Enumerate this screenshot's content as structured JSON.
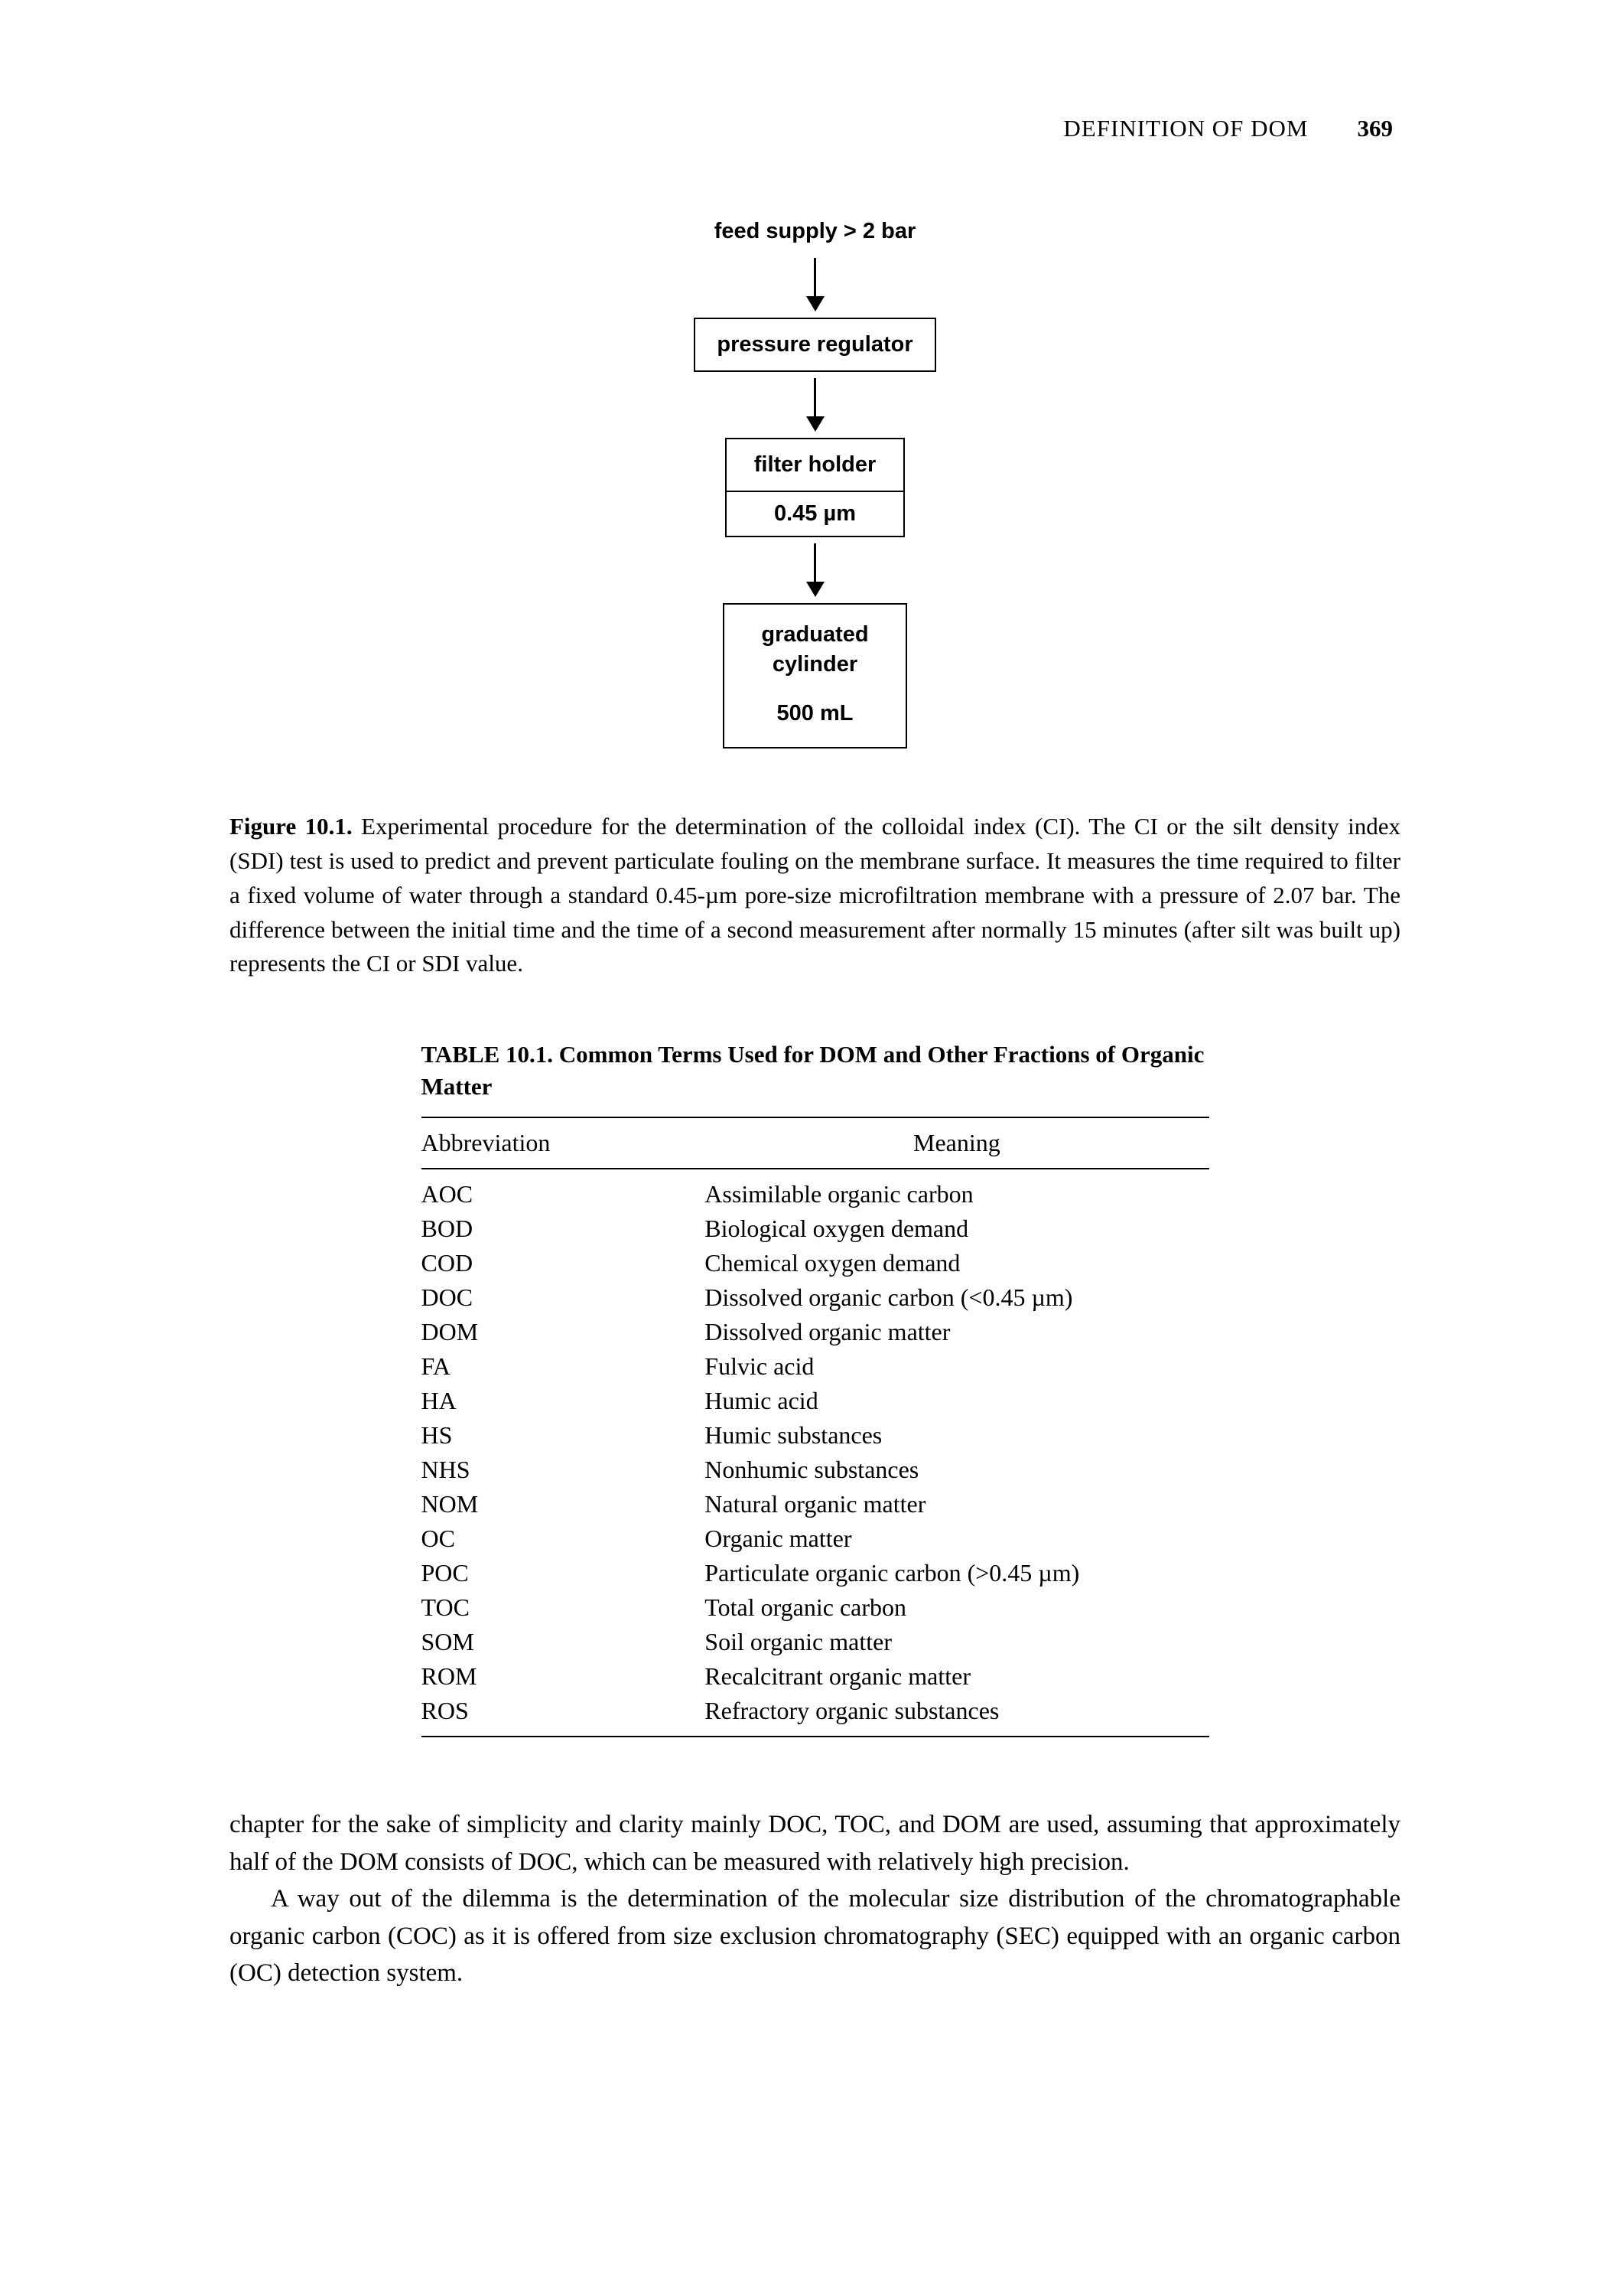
{
  "header": {
    "running_head": "DEFINITION OF DOM",
    "page_number": "369"
  },
  "flowchart": {
    "nodes": [
      {
        "id": "feed",
        "type": "label",
        "text": "feed supply > 2 bar"
      },
      {
        "id": "reg",
        "type": "box",
        "text": "pressure regulator"
      },
      {
        "id": "filter",
        "type": "box-with-sub",
        "text": "filter holder",
        "subtext": "0.45 µm"
      },
      {
        "id": "cyl",
        "type": "tall-box",
        "line1": "graduated",
        "line2": "cylinder",
        "line3": "500 mL"
      }
    ],
    "arrow_color": "#000000",
    "font_family": "Arial, Helvetica, sans-serif"
  },
  "figure_caption": {
    "label": "Figure 10.1.",
    "text": "Experimental procedure for the determination of the colloidal index (CI). The CI or the silt density index (SDI) test is used to predict and prevent particulate fouling on the membrane surface. It measures the time required to filter a fixed volume of water through a standard 0.45-µm pore-size microfiltration membrane with a pressure of 2.07 bar. The difference between the initial time and the time of a second measurement after normally 15 minutes (after silt was built up) represents the CI or SDI value."
  },
  "table": {
    "title": "TABLE 10.1. Common Terms Used for DOM and Other Fractions of Organic Matter",
    "columns": [
      "Abbreviation",
      "Meaning"
    ],
    "rows": [
      [
        "AOC",
        "Assimilable organic carbon"
      ],
      [
        "BOD",
        "Biological oxygen demand"
      ],
      [
        "COD",
        "Chemical oxygen demand"
      ],
      [
        "DOC",
        "Dissolved organic carbon (<0.45 µm)"
      ],
      [
        "DOM",
        "Dissolved organic matter"
      ],
      [
        "FA",
        "Fulvic acid"
      ],
      [
        "HA",
        "Humic acid"
      ],
      [
        "HS",
        "Humic substances"
      ],
      [
        "NHS",
        "Nonhumic substances"
      ],
      [
        "NOM",
        "Natural organic matter"
      ],
      [
        "OC",
        "Organic matter"
      ],
      [
        "POC",
        "Particulate organic carbon (>0.45 µm)"
      ],
      [
        "TOC",
        "Total organic carbon"
      ],
      [
        "SOM",
        "Soil organic matter"
      ],
      [
        "ROM",
        "Recalcitrant organic matter"
      ],
      [
        "ROS",
        "Refractory organic substances"
      ]
    ]
  },
  "body": {
    "para1": "chapter for the sake of simplicity and clarity mainly DOC, TOC, and DOM are used, assuming that approximately half of the DOM consists of DOC, which can be measured with relatively high precision.",
    "para2": "A way out of the dilemma is the determination of the molecular size distribution of the chromatographable organic carbon (COC) as it is offered from size exclusion chromatography (SEC) equipped with an organic carbon (OC) detection system."
  },
  "colors": {
    "text": "#000000",
    "background": "#ffffff",
    "border": "#000000"
  }
}
